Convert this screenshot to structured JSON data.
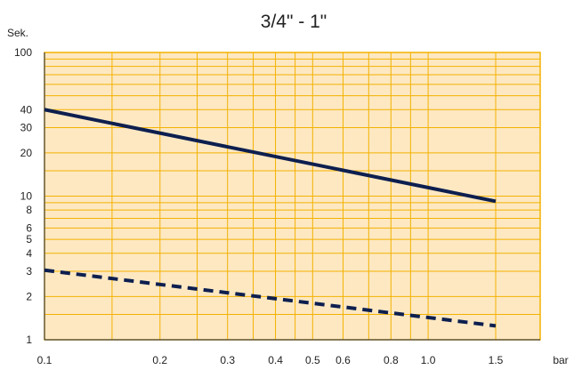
{
  "chart_data": {
    "type": "line",
    "title": "3/4\" - 1\"",
    "xlabel": "bar",
    "ylabel": "Sek.",
    "xscale": "log",
    "yscale": "log",
    "xlim": [
      0.1,
      1.5
    ],
    "ylim": [
      1,
      100
    ],
    "grid": true,
    "legend": "none",
    "x_ticks": [
      0.1,
      0.2,
      0.3,
      0.4,
      0.5,
      0.6,
      0.8,
      1.0,
      1.5
    ],
    "x_tick_labels": [
      "0.1",
      "0.2",
      "0.3",
      "0.4",
      "0.5",
      "0.6",
      "0.8",
      "1.0",
      "1.5"
    ],
    "x_grid": [
      0.1,
      0.15,
      0.2,
      0.25,
      0.3,
      0.35,
      0.4,
      0.45,
      0.5,
      0.6,
      0.7,
      0.8,
      0.9,
      1.0,
      1.5
    ],
    "y_ticks": [
      1,
      2,
      3,
      4,
      5,
      6,
      8,
      10,
      20,
      30,
      40,
      100
    ],
    "y_tick_labels": [
      "1",
      "2",
      "3",
      "4",
      "5",
      "6",
      "8",
      "10",
      "20",
      "30",
      "40",
      "100"
    ],
    "y_grid": [
      1,
      1.5,
      2,
      3,
      4,
      5,
      6,
      7,
      8,
      9,
      10,
      15,
      20,
      30,
      40,
      50,
      60,
      70,
      80,
      90,
      100
    ],
    "series": [
      {
        "style": "solid",
        "color": "#0d1f4f",
        "x": [
          0.1,
          1.5
        ],
        "y": [
          40,
          9.2
        ]
      },
      {
        "style": "dashed",
        "color": "#0d1f4f",
        "x": [
          0.1,
          1.5
        ],
        "y": [
          3.05,
          1.25
        ]
      }
    ],
    "colors": {
      "plot_bg": "#fde8c2",
      "grid": "#f3b200",
      "axis": "#444444"
    }
  }
}
